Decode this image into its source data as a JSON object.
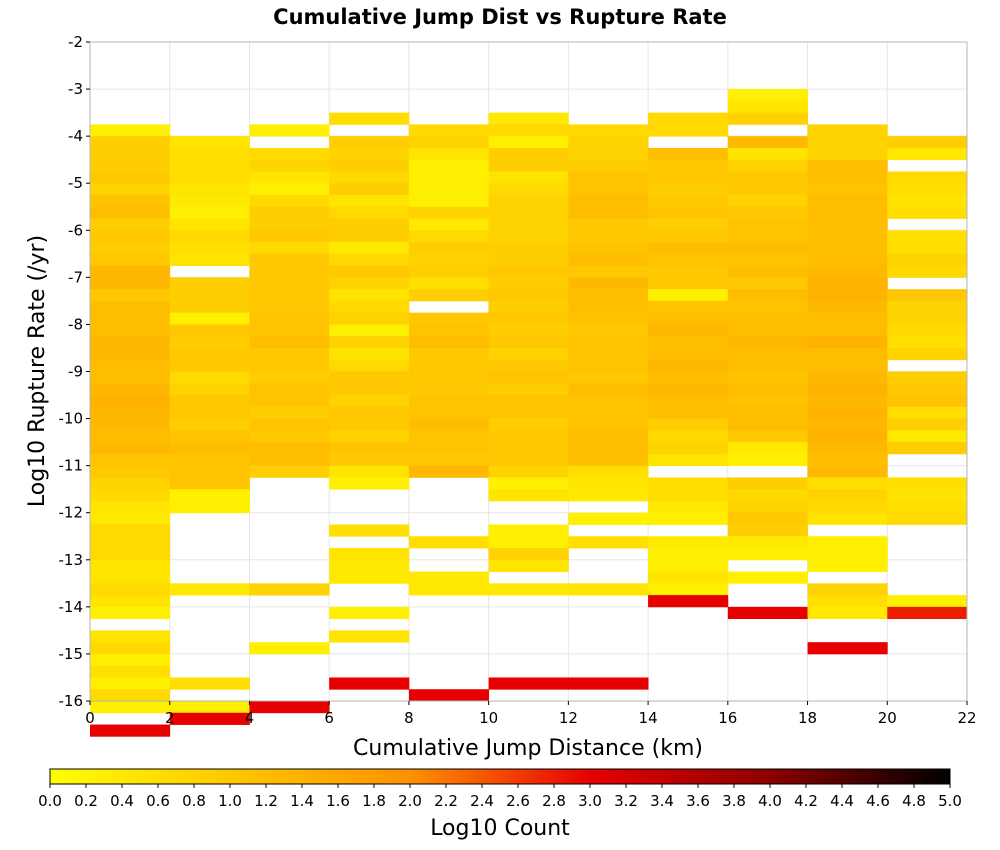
{
  "chart_data": {
    "type": "heatmap",
    "title": "Cumulative Jump Dist vs Rupture Rate",
    "xlabel": "Cumulative Jump Distance (km)",
    "ylabel": "Log10 Rupture Rate (/yr)",
    "colorbar_label": "Log10 Count",
    "xlim": [
      0,
      22
    ],
    "ylim": [
      -16,
      -2
    ],
    "x_bin_width": 2,
    "y_bin_width": 0.25,
    "x_ticks": [
      "0",
      "2",
      "4",
      "6",
      "8",
      "10",
      "12",
      "14",
      "16",
      "18",
      "20",
      "22"
    ],
    "y_ticks": [
      "-2",
      "-3",
      "-4",
      "-5",
      "-6",
      "-7",
      "-8",
      "-9",
      "-10",
      "-11",
      "-12",
      "-13",
      "-14",
      "-15",
      "-16"
    ],
    "color_range": [
      0.0,
      5.0
    ],
    "colorbar_ticks": [
      "0.0",
      "0.2",
      "0.4",
      "0.6",
      "0.8",
      "1.0",
      "1.2",
      "1.4",
      "1.6",
      "1.8",
      "2.0",
      "2.2",
      "2.4",
      "2.6",
      "2.8",
      "3.0",
      "3.2",
      "3.4",
      "3.6",
      "3.8",
      "4.0",
      "4.2",
      "4.4",
      "4.6",
      "4.8",
      "5.0"
    ],
    "colormap_stops": [
      "#ffff00",
      "#ffc800",
      "#ff9100",
      "#e60000",
      "#8c0000",
      "#000000"
    ],
    "grid": true,
    "columns": [
      {
        "x0": 0,
        "y_start": -3.75,
        "values": [
          0.3,
          0.9,
          0.9,
          0.9,
          1.0,
          0.8,
          1.1,
          1.2,
          0.9,
          1.0,
          0.9,
          1.0,
          1.3,
          1.3,
          1.0,
          1.2,
          1.2,
          1.2,
          1.3,
          1.3,
          1.2,
          1.2,
          1.3,
          1.4,
          1.3,
          1.3,
          1.2,
          1.3,
          1.1,
          1.0,
          0.8,
          0.7,
          0.5,
          0.4,
          0.7,
          0.7,
          0.7,
          0.5,
          0.5,
          0.7,
          0.5,
          0.3,
          null,
          0.5,
          0.7,
          0.3,
          0.6,
          0.3,
          0.7,
          0.3,
          null,
          3.0
        ]
      },
      {
        "x0": 2,
        "y_start": -4.0,
        "values": [
          0.5,
          0.6,
          0.6,
          0.6,
          0.5,
          0.4,
          0.3,
          0.5,
          0.7,
          0.6,
          0.5,
          null,
          0.9,
          0.9,
          0.9,
          0.3,
          1.0,
          0.9,
          1.0,
          1.0,
          0.7,
          0.8,
          1.0,
          1.0,
          0.9,
          1.1,
          1.2,
          1.1,
          1.1,
          1.1,
          0.3,
          0.3,
          null,
          null,
          null,
          null,
          null,
          null,
          0.4,
          null,
          null,
          null,
          null,
          null,
          null,
          null,
          0.6,
          null,
          0.3,
          3.0
        ]
      },
      {
        "x0": 4,
        "y_start": -3.75,
        "values": [
          0.3,
          null,
          0.7,
          0.8,
          0.5,
          0.3,
          0.7,
          0.9,
          0.9,
          1.0,
          0.7,
          1.0,
          1.0,
          1.0,
          1.0,
          1.0,
          1.1,
          1.1,
          1.2,
          1.0,
          1.0,
          0.9,
          1.1,
          1.1,
          0.9,
          1.1,
          1.0,
          1.2,
          1.2,
          0.9,
          null,
          null,
          null,
          null,
          null,
          null,
          null,
          null,
          null,
          0.8,
          null,
          null,
          null,
          null,
          0.3,
          null,
          null,
          null,
          null,
          3.0
        ]
      },
      {
        "x0": 6,
        "y_start": -3.5,
        "values": [
          0.6,
          null,
          0.9,
          0.8,
          0.9,
          0.7,
          0.9,
          0.5,
          0.7,
          0.9,
          0.9,
          0.4,
          0.7,
          1.0,
          0.8,
          0.5,
          0.7,
          0.8,
          0.3,
          0.8,
          0.5,
          0.7,
          1.0,
          1.0,
          0.8,
          1.0,
          1.0,
          0.8,
          1.1,
          1.0,
          0.5,
          0.3,
          null,
          null,
          null,
          0.6,
          null,
          0.5,
          0.4,
          0.4,
          null,
          null,
          0.3,
          null,
          0.5,
          null,
          null,
          null,
          3.0
        ]
      },
      {
        "x0": 8,
        "y_start": -3.75,
        "values": [
          0.7,
          0.8,
          0.5,
          0.3,
          0.3,
          0.3,
          0.3,
          0.8,
          0.4,
          0.7,
          0.9,
          0.8,
          0.9,
          0.6,
          0.9,
          null,
          1.0,
          1.1,
          1.2,
          1.0,
          1.0,
          1.0,
          1.0,
          1.1,
          1.1,
          1.2,
          1.1,
          1.1,
          1.0,
          1.3,
          null,
          null,
          null,
          null,
          null,
          0.6,
          null,
          null,
          0.4,
          0.4,
          null,
          null,
          null,
          null,
          null,
          null,
          null,
          null,
          3.0
        ]
      },
      {
        "x0": 10,
        "y_start": -3.5,
        "values": [
          0.4,
          0.7,
          0.3,
          0.9,
          0.9,
          0.5,
          0.7,
          0.8,
          0.8,
          0.8,
          0.8,
          0.9,
          0.9,
          1.0,
          0.9,
          1.0,
          0.9,
          1.0,
          0.9,
          1.0,
          0.8,
          1.0,
          1.1,
          0.9,
          1.1,
          1.1,
          0.9,
          1.0,
          1.0,
          1.0,
          0.8,
          0.3,
          0.5,
          null,
          null,
          0.3,
          0.3,
          0.8,
          0.5,
          null,
          0.4,
          null,
          null,
          null,
          null,
          null,
          null,
          null,
          3.0
        ]
      },
      {
        "x0": 12,
        "y_start": -3.75,
        "values": [
          0.7,
          0.8,
          0.8,
          0.9,
          1.1,
          1.1,
          1.2,
          1.2,
          1.0,
          1.0,
          1.1,
          1.2,
          1.0,
          1.3,
          1.2,
          1.2,
          1.1,
          1.0,
          1.1,
          1.1,
          1.1,
          1.0,
          1.2,
          1.1,
          1.1,
          1.1,
          1.2,
          1.2,
          1.2,
          0.6,
          0.5,
          0.4,
          null,
          0.3,
          null,
          0.6,
          null,
          null,
          null,
          0.5,
          null,
          null,
          null,
          null,
          null,
          null,
          null,
          3.0
        ]
      },
      {
        "x0": 14,
        "y_start": -3.5,
        "values": [
          0.7,
          0.7,
          null,
          1.2,
          1.0,
          1.0,
          0.9,
          1.0,
          1.1,
          0.9,
          1.0,
          1.2,
          1.1,
          1.0,
          1.0,
          0.3,
          1.1,
          1.2,
          1.3,
          1.2,
          1.2,
          1.3,
          1.2,
          1.3,
          1.2,
          1.2,
          0.9,
          0.7,
          0.8,
          0.5,
          null,
          0.6,
          0.6,
          0.4,
          0.3,
          null,
          0.4,
          0.3,
          0.3,
          0.5,
          0.3,
          3.0
        ]
      },
      {
        "x0": 16,
        "y_start": -3.0,
        "values": [
          0.3,
          0.5,
          0.8,
          null,
          1.3,
          0.5,
          0.8,
          1.0,
          1.0,
          0.8,
          1.0,
          1.1,
          1.1,
          1.2,
          1.1,
          1.2,
          1.0,
          1.2,
          1.1,
          1.2,
          1.2,
          1.3,
          1.2,
          1.2,
          1.1,
          1.2,
          1.1,
          1.2,
          1.2,
          1.0,
          0.4,
          0.3,
          null,
          0.9,
          0.7,
          0.8,
          1.0,
          0.9,
          0.4,
          0.3,
          null,
          0.3,
          null,
          null,
          3.0
        ]
      },
      {
        "x0": 18,
        "y_start": -3.75,
        "values": [
          0.8,
          0.8,
          0.8,
          1.2,
          1.2,
          1.1,
          1.2,
          1.2,
          1.2,
          1.2,
          1.2,
          1.2,
          1.3,
          1.4,
          1.4,
          1.3,
          1.2,
          1.2,
          1.4,
          1.2,
          1.2,
          1.3,
          1.4,
          1.3,
          1.4,
          1.3,
          1.4,
          1.3,
          1.2,
          1.3,
          0.6,
          0.8,
          0.7,
          0.5,
          null,
          0.3,
          0.3,
          0.3,
          null,
          0.8,
          0.6,
          0.4,
          null,
          null,
          3.0
        ]
      },
      {
        "x0": 20,
        "y_start": -4.0,
        "values": [
          0.9,
          0.4,
          null,
          0.7,
          0.6,
          0.5,
          0.6,
          null,
          0.6,
          0.6,
          0.8,
          0.7,
          null,
          1.0,
          0.8,
          0.8,
          0.7,
          0.6,
          0.8,
          null,
          0.9,
          1.0,
          1.1,
          0.6,
          0.9,
          0.4,
          0.9,
          null,
          null,
          0.6,
          0.5,
          0.6,
          0.7,
          null,
          null,
          null,
          null,
          null,
          null,
          0.3,
          2.8
        ]
      }
    ]
  }
}
